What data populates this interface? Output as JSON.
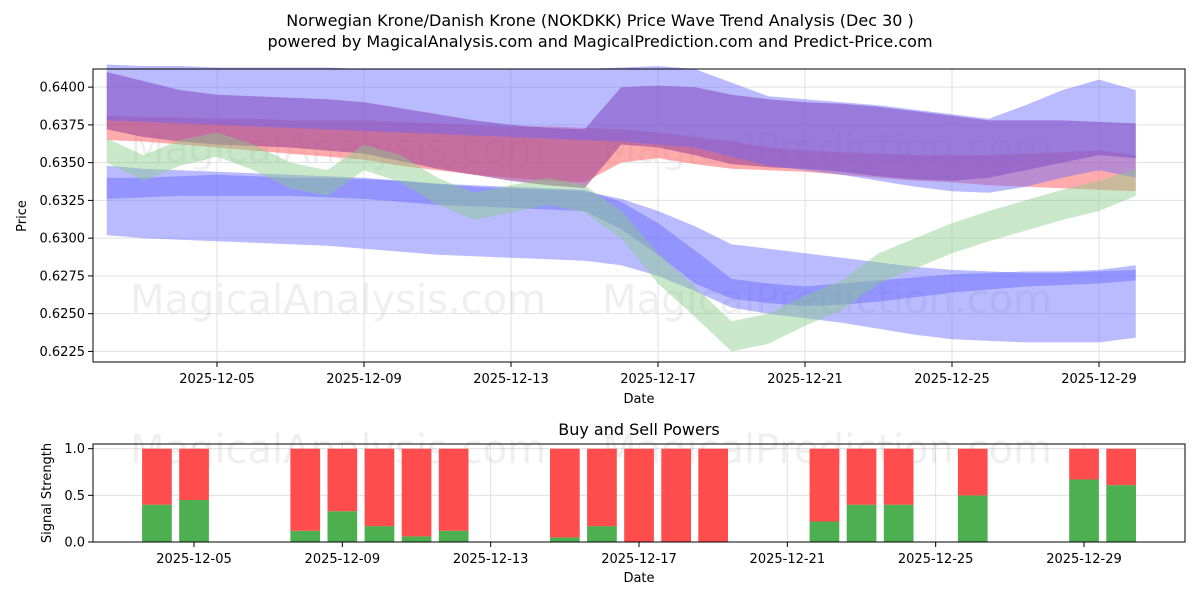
{
  "title_line1": "Norwegian Krone/Danish Krone (NOKDKK) Price Wave Trend Analysis (Dec 30 )",
  "title_line2": "powered by MagicalAnalysis.com and MagicalPrediction.com and Predict-Price.com",
  "watermarks": [
    "MagicalAnalysis.com",
    "MagicalPrediction.com"
  ],
  "colors": {
    "red": "#ff6666",
    "purple": "#a64d9a",
    "blue": "#6666ff",
    "green": "#88cc88",
    "bar_green": "#4caf50",
    "bar_red": "#ff4c4c",
    "grid": "#e0e0e0"
  },
  "chart_data": [
    {
      "type": "area",
      "xlabel": "Date",
      "ylabel": "Price",
      "x_dates": [
        "2025-12-02",
        "2025-12-03",
        "2025-12-04",
        "2025-12-05",
        "2025-12-06",
        "2025-12-07",
        "2025-12-08",
        "2025-12-09",
        "2025-12-10",
        "2025-12-11",
        "2025-12-12",
        "2025-12-13",
        "2025-12-14",
        "2025-12-15",
        "2025-12-16",
        "2025-12-17",
        "2025-12-18",
        "2025-12-19",
        "2025-12-20",
        "2025-12-21",
        "2025-12-22",
        "2025-12-23",
        "2025-12-24",
        "2025-12-25",
        "2025-12-26",
        "2025-12-27",
        "2025-12-28",
        "2025-12-29",
        "2025-12-30"
      ],
      "x_tick_labels": [
        "2025-12-05",
        "2025-12-09",
        "2025-12-13",
        "2025-12-17",
        "2025-12-21",
        "2025-12-25",
        "2025-12-29"
      ],
      "y_tick_labels": [
        "0.6225",
        "0.6250",
        "0.6275",
        "0.6300",
        "0.6325",
        "0.6350",
        "0.6375",
        "0.6400"
      ],
      "ylim": [
        0.6218,
        0.6412
      ],
      "series": [
        {
          "name": "red band",
          "color": "red",
          "upper": [
            0.6381,
            0.638,
            0.638,
            0.6379,
            0.6379,
            0.6378,
            0.6378,
            0.6378,
            0.6377,
            0.6376,
            0.6375,
            0.6374,
            0.6374,
            0.6373,
            0.6372,
            0.637,
            0.6367,
            0.6364,
            0.636,
            0.6358,
            0.6357,
            0.6356,
            0.6355,
            0.6355,
            0.6355,
            0.6356,
            0.6357,
            0.6358,
            0.6355
          ],
          "lower": [
            0.6365,
            0.6364,
            0.6362,
            0.636,
            0.6358,
            0.6356,
            0.6354,
            0.6352,
            0.6348,
            0.6345,
            0.6342,
            0.634,
            0.6338,
            0.6337,
            0.635,
            0.6353,
            0.6349,
            0.6346,
            0.6345,
            0.6344,
            0.6342,
            0.634,
            0.6338,
            0.6337,
            0.6335,
            0.6334,
            0.6333,
            0.6332,
            0.6331
          ]
        },
        {
          "name": "purple band",
          "color": "purple",
          "upper": [
            0.641,
            0.6404,
            0.6398,
            0.6395,
            0.6394,
            0.6393,
            0.6392,
            0.639,
            0.6386,
            0.6382,
            0.6378,
            0.6375,
            0.6373,
            0.6372,
            0.64,
            0.6401,
            0.64,
            0.6395,
            0.6392,
            0.639,
            0.6389,
            0.6387,
            0.6384,
            0.6381,
            0.6378,
            0.6378,
            0.6378,
            0.6377,
            0.6376
          ],
          "lower": [
            0.6372,
            0.6367,
            0.6364,
            0.6362,
            0.6361,
            0.636,
            0.6358,
            0.6356,
            0.6351,
            0.6346,
            0.6342,
            0.6338,
            0.6335,
            0.6333,
            0.6362,
            0.636,
            0.6355,
            0.6349,
            0.6347,
            0.6346,
            0.6344,
            0.6341,
            0.6339,
            0.6338,
            0.634,
            0.6345,
            0.635,
            0.6355,
            0.6353
          ]
        },
        {
          "name": "blue band upper",
          "color": "blue",
          "upper": [
            0.6415,
            0.6414,
            0.6414,
            0.6413,
            0.6413,
            0.6413,
            0.6413,
            0.6412,
            0.6412,
            0.6412,
            0.6412,
            0.6412,
            0.6412,
            0.6412,
            0.6413,
            0.6414,
            0.6412,
            0.6403,
            0.6394,
            0.6392,
            0.639,
            0.6388,
            0.6385,
            0.6382,
            0.6379,
            0.6388,
            0.6398,
            0.6405,
            0.6398
          ],
          "lower": [
            0.6378,
            0.6377,
            0.6376,
            0.6375,
            0.6374,
            0.6373,
            0.6372,
            0.6371,
            0.637,
            0.6369,
            0.6368,
            0.6367,
            0.6366,
            0.6365,
            0.6364,
            0.6362,
            0.636,
            0.6354,
            0.6348,
            0.6345,
            0.6342,
            0.6338,
            0.6334,
            0.6331,
            0.633,
            0.6334,
            0.634,
            0.6345,
            0.634
          ]
        },
        {
          "name": "blue band lower",
          "color": "blue",
          "upper": [
            0.6348,
            0.6346,
            0.6345,
            0.6344,
            0.6343,
            0.6342,
            0.6341,
            0.634,
            0.6338,
            0.6336,
            0.6334,
            0.6333,
            0.6332,
            0.6331,
            0.6326,
            0.6318,
            0.6308,
            0.6296,
            0.6293,
            0.629,
            0.6287,
            0.6284,
            0.6281,
            0.6279,
            0.6278,
            0.6277,
            0.6277,
            0.6278,
            0.6279
          ],
          "lower": [
            0.6302,
            0.63,
            0.6299,
            0.6298,
            0.6297,
            0.6296,
            0.6295,
            0.6293,
            0.6291,
            0.6289,
            0.6288,
            0.6287,
            0.6286,
            0.6285,
            0.6282,
            0.6275,
            0.6265,
            0.6254,
            0.625,
            0.6247,
            0.6244,
            0.624,
            0.6236,
            0.6233,
            0.6232,
            0.6231,
            0.6231,
            0.6231,
            0.6234
          ]
        },
        {
          "name": "blue wave",
          "color": "blue",
          "upper": [
            0.634,
            0.634,
            0.6341,
            0.6342,
            0.6341,
            0.634,
            0.634,
            0.6339,
            0.6338,
            0.6336,
            0.6335,
            0.6334,
            0.6333,
            0.6332,
            0.6324,
            0.631,
            0.6292,
            0.6273,
            0.627,
            0.6268,
            0.627,
            0.6272,
            0.6274,
            0.6276,
            0.6277,
            0.6278,
            0.6278,
            0.6279,
            0.6282
          ],
          "lower": [
            0.6326,
            0.6327,
            0.6328,
            0.6328,
            0.6328,
            0.6328,
            0.6327,
            0.6326,
            0.6324,
            0.6322,
            0.6321,
            0.632,
            0.6319,
            0.6318,
            0.6306,
            0.6289,
            0.627,
            0.626,
            0.6257,
            0.6255,
            0.6256,
            0.6258,
            0.6261,
            0.6264,
            0.6266,
            0.6268,
            0.6269,
            0.627,
            0.6272
          ]
        },
        {
          "name": "green wave",
          "color": "green",
          "upper": [
            0.6366,
            0.6355,
            0.6365,
            0.637,
            0.6362,
            0.635,
            0.6345,
            0.6362,
            0.6355,
            0.634,
            0.633,
            0.6335,
            0.634,
            0.6335,
            0.6318,
            0.629,
            0.6268,
            0.6245,
            0.625,
            0.6262,
            0.6272,
            0.629,
            0.63,
            0.631,
            0.6318,
            0.6325,
            0.6332,
            0.6338,
            0.6346
          ],
          "lower": [
            0.635,
            0.6338,
            0.6348,
            0.6354,
            0.6345,
            0.6333,
            0.6328,
            0.6345,
            0.6337,
            0.6322,
            0.6312,
            0.6317,
            0.6322,
            0.6317,
            0.63,
            0.627,
            0.6248,
            0.6225,
            0.623,
            0.6242,
            0.6252,
            0.627,
            0.628,
            0.629,
            0.6298,
            0.6305,
            0.6312,
            0.6318,
            0.6328
          ]
        }
      ]
    },
    {
      "type": "bar",
      "title": "Buy and Sell Powers",
      "xlabel": "Date",
      "ylabel": "Signal Strength",
      "ylim": [
        0,
        1.05
      ],
      "y_tick_labels": [
        "0.0",
        "0.5",
        "1.0"
      ],
      "x_tick_labels": [
        "2025-12-05",
        "2025-12-09",
        "2025-12-13",
        "2025-12-17",
        "2025-12-21",
        "2025-12-25",
        "2025-12-29"
      ],
      "categories": [
        "2025-12-04",
        "2025-12-05",
        "2025-12-08",
        "2025-12-09",
        "2025-12-10",
        "2025-12-11",
        "2025-12-12",
        "2025-12-15",
        "2025-12-16",
        "2025-12-17",
        "2025-12-18",
        "2025-12-19",
        "2025-12-22",
        "2025-12-23",
        "2025-12-24",
        "2025-12-26",
        "2025-12-29",
        "2025-12-30"
      ],
      "series": [
        {
          "name": "Buy",
          "color": "bar_green",
          "values": [
            0.4,
            0.45,
            0.12,
            0.33,
            0.17,
            0.06,
            0.12,
            0.05,
            0.17,
            0.0,
            0.0,
            0.0,
            0.22,
            0.4,
            0.4,
            0.5,
            0.67,
            0.61
          ]
        },
        {
          "name": "Sell",
          "color": "bar_red",
          "values": [
            0.6,
            0.55,
            0.88,
            0.67,
            0.83,
            0.94,
            0.88,
            0.95,
            0.83,
            1.0,
            1.0,
            1.0,
            0.78,
            0.6,
            0.6,
            0.5,
            0.33,
            0.39
          ]
        }
      ]
    }
  ]
}
